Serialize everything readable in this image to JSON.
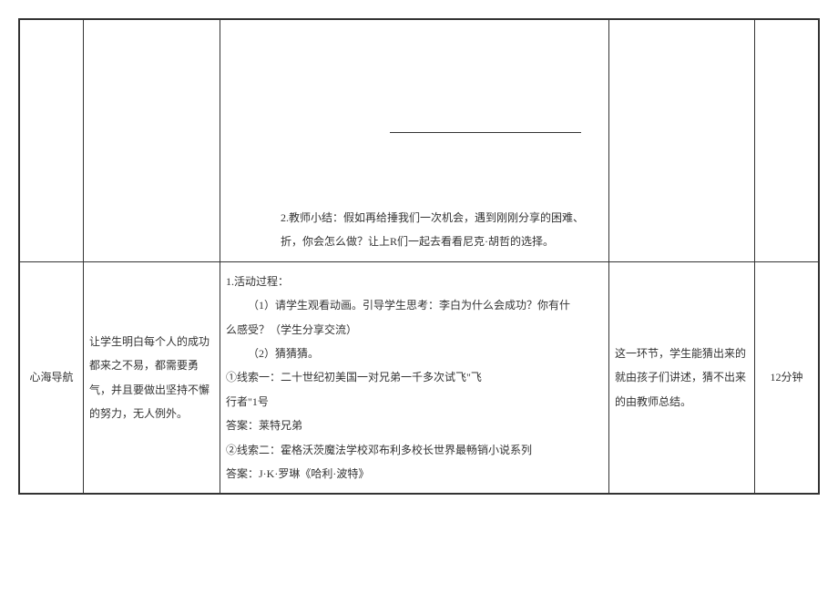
{
  "table": {
    "columns": {
      "widths": [
        70,
        150,
        480,
        160,
        70
      ],
      "alignment": [
        "center",
        "left",
        "left",
        "left",
        "center"
      ]
    },
    "border_color": "#333333",
    "background_color": "#ffffff",
    "text_color": "#333333",
    "font_size": 12,
    "line_height": 2.2,
    "rows": [
      {
        "col1": "",
        "col2": "",
        "col3_summary_line1": "2.教师小结：假如再给捶我们一次机会，遇到刚刚分享的困难、",
        "col3_summary_line2": "折，你会怎么做？让上R们一起去看看尼克·胡哲的选择。",
        "col4": "",
        "col5": ""
      },
      {
        "col1": "心海导航",
        "col2": "让学生明白每个人的成功都来之不易，都需要勇气，并且要做出坚持不懈的努力，无人例外。",
        "col3_line1": "1.活动过程：",
        "col3_line2": "（1）请学生观看动画。引导学生思考：李白为什么会成功？你有什",
        "col3_line3": "么感受？（学生分享交流）",
        "col3_line4": "（2）猜猜猜。",
        "col3_line5": "①线索一：二十世纪初美国一对兄弟一千多次试飞\"飞",
        "col3_line6": "行者\"1号",
        "col3_line7": "答案：莱特兄弟",
        "col3_line8": "②线索二：霍格沃茨魔法学校邓布利多校长世界最畅销小说系列",
        "col3_line9": "答案：J·K·罗琳《哈利·波特》",
        "col4": "这一环节，学生能猜出来的就由孩子们讲述，猜不出来的由教师总结。",
        "col5": "12分钟"
      }
    ]
  }
}
